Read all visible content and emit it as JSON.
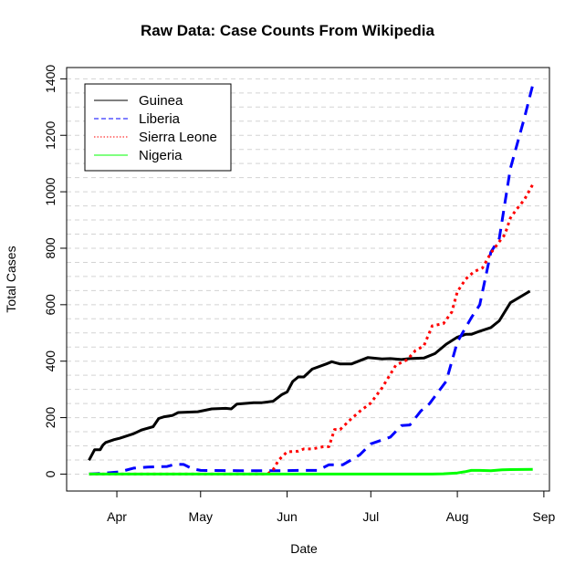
{
  "chart_data": {
    "type": "line",
    "title": "Raw Data: Case Counts From Wikipedia",
    "xlabel": "Date",
    "ylabel": "Total Cases",
    "x_ticks": [
      {
        "label": "Apr",
        "date": "2014-04-01"
      },
      {
        "label": "May",
        "date": "2014-05-01"
      },
      {
        "label": "Jun",
        "date": "2014-06-01"
      },
      {
        "label": "Jul",
        "date": "2014-07-01"
      },
      {
        "label": "Aug",
        "date": "2014-08-01"
      },
      {
        "label": "Sep",
        "date": "2014-09-01"
      }
    ],
    "y_ticks": [
      0,
      200,
      400,
      600,
      800,
      1000,
      1200,
      1400
    ],
    "xlim": [
      "2014-03-14",
      "2014-09-03"
    ],
    "ylim": [
      -60,
      1440
    ],
    "grid": "horizontal dashed",
    "legend_position": "top-left",
    "series": [
      {
        "name": "Guinea",
        "color": "#000000",
        "line_style": "solid",
        "points": [
          [
            "2014-03-22",
            49
          ],
          [
            "2014-03-24",
            86
          ],
          [
            "2014-03-26",
            86
          ],
          [
            "2014-03-27",
            103
          ],
          [
            "2014-03-28",
            112
          ],
          [
            "2014-03-31",
            122
          ],
          [
            "2014-04-02",
            127
          ],
          [
            "2014-04-07",
            143
          ],
          [
            "2014-04-10",
            157
          ],
          [
            "2014-04-14",
            168
          ],
          [
            "2014-04-16",
            197
          ],
          [
            "2014-04-18",
            203
          ],
          [
            "2014-04-21",
            208
          ],
          [
            "2014-04-23",
            218
          ],
          [
            "2014-04-30",
            221
          ],
          [
            "2014-05-05",
            231
          ],
          [
            "2014-05-10",
            233
          ],
          [
            "2014-05-12",
            231
          ],
          [
            "2014-05-14",
            248
          ],
          [
            "2014-05-20",
            253
          ],
          [
            "2014-05-23",
            253
          ],
          [
            "2014-05-27",
            258
          ],
          [
            "2014-05-30",
            281
          ],
          [
            "2014-06-01",
            291
          ],
          [
            "2014-06-03",
            328
          ],
          [
            "2014-06-05",
            344
          ],
          [
            "2014-06-07",
            344
          ],
          [
            "2014-06-10",
            372
          ],
          [
            "2014-06-15",
            390
          ],
          [
            "2014-06-17",
            398
          ],
          [
            "2014-06-20",
            390
          ],
          [
            "2014-06-24",
            390
          ],
          [
            "2014-06-30",
            413
          ],
          [
            "2014-07-05",
            408
          ],
          [
            "2014-07-08",
            409
          ],
          [
            "2014-07-12",
            406
          ],
          [
            "2014-07-15",
            409
          ],
          [
            "2014-07-20",
            411
          ],
          [
            "2014-07-24",
            427
          ],
          [
            "2014-07-28",
            460
          ],
          [
            "2014-08-01",
            485
          ],
          [
            "2014-08-04",
            495
          ],
          [
            "2014-08-06",
            495
          ],
          [
            "2014-08-09",
            506
          ],
          [
            "2014-08-13",
            519
          ],
          [
            "2014-08-16",
            543
          ],
          [
            "2014-08-20",
            607
          ],
          [
            "2014-08-27",
            648
          ]
        ]
      },
      {
        "name": "Liberia",
        "color": "#0000ff",
        "line_style": "dashed",
        "points": [
          [
            "2014-03-22",
            0
          ],
          [
            "2014-03-27",
            3
          ],
          [
            "2014-04-02",
            8
          ],
          [
            "2014-04-07",
            21
          ],
          [
            "2014-04-12",
            25
          ],
          [
            "2014-04-19",
            27
          ],
          [
            "2014-04-22",
            35
          ],
          [
            "2014-04-25",
            34
          ],
          [
            "2014-04-28",
            19
          ],
          [
            "2014-05-01",
            13
          ],
          [
            "2014-05-15",
            12
          ],
          [
            "2014-05-31",
            12
          ],
          [
            "2014-06-05",
            13
          ],
          [
            "2014-06-12",
            13
          ],
          [
            "2014-06-16",
            33
          ],
          [
            "2014-06-21",
            33
          ],
          [
            "2014-06-27",
            68
          ],
          [
            "2014-07-01",
            107
          ],
          [
            "2014-07-08",
            131
          ],
          [
            "2014-07-12",
            172
          ],
          [
            "2014-07-15",
            174
          ],
          [
            "2014-07-19",
            224
          ],
          [
            "2014-07-22",
            249
          ],
          [
            "2014-07-28",
            329
          ],
          [
            "2014-08-01",
            468
          ],
          [
            "2014-08-06",
            554
          ],
          [
            "2014-08-09",
            599
          ],
          [
            "2014-08-13",
            786
          ],
          [
            "2014-08-16",
            834
          ],
          [
            "2014-08-20",
            1082
          ],
          [
            "2014-08-25",
            1261
          ],
          [
            "2014-08-28",
            1378
          ]
        ]
      },
      {
        "name": "Sierra Leone",
        "color": "#ff0000",
        "line_style": "dotted",
        "points": [
          [
            "2014-03-22",
            0
          ],
          [
            "2014-04-15",
            0
          ],
          [
            "2014-05-15",
            0
          ],
          [
            "2014-05-25",
            0
          ],
          [
            "2014-05-27",
            16
          ],
          [
            "2014-05-29",
            50
          ],
          [
            "2014-06-01",
            79
          ],
          [
            "2014-06-05",
            81
          ],
          [
            "2014-06-07",
            89
          ],
          [
            "2014-06-10",
            89
          ],
          [
            "2014-06-14",
            97
          ],
          [
            "2014-06-16",
            97
          ],
          [
            "2014-06-18",
            158
          ],
          [
            "2014-06-20",
            158
          ],
          [
            "2014-06-24",
            196
          ],
          [
            "2014-06-27",
            222
          ],
          [
            "2014-07-01",
            252
          ],
          [
            "2014-07-05",
            305
          ],
          [
            "2014-07-10",
            386
          ],
          [
            "2014-07-14",
            405
          ],
          [
            "2014-07-17",
            438
          ],
          [
            "2014-07-20",
            454
          ],
          [
            "2014-07-23",
            525
          ],
          [
            "2014-07-27",
            533
          ],
          [
            "2014-07-30",
            574
          ],
          [
            "2014-08-01",
            646
          ],
          [
            "2014-08-04",
            691
          ],
          [
            "2014-08-07",
            717
          ],
          [
            "2014-08-10",
            730
          ],
          [
            "2014-08-13",
            783
          ],
          [
            "2014-08-16",
            823
          ],
          [
            "2014-08-18",
            848
          ],
          [
            "2014-08-20",
            907
          ],
          [
            "2014-08-22",
            935
          ],
          [
            "2014-08-25",
            972
          ],
          [
            "2014-08-28",
            1026
          ]
        ]
      },
      {
        "name": "Nigeria",
        "color": "#00ff00",
        "line_style": "solid",
        "points": [
          [
            "2014-03-22",
            0
          ],
          [
            "2014-07-23",
            0
          ],
          [
            "2014-07-27",
            1
          ],
          [
            "2014-08-01",
            4
          ],
          [
            "2014-08-04",
            9
          ],
          [
            "2014-08-06",
            13
          ],
          [
            "2014-08-09",
            13
          ],
          [
            "2014-08-13",
            12
          ],
          [
            "2014-08-17",
            15
          ],
          [
            "2014-08-20",
            16
          ],
          [
            "2014-08-28",
            17
          ]
        ]
      }
    ]
  }
}
